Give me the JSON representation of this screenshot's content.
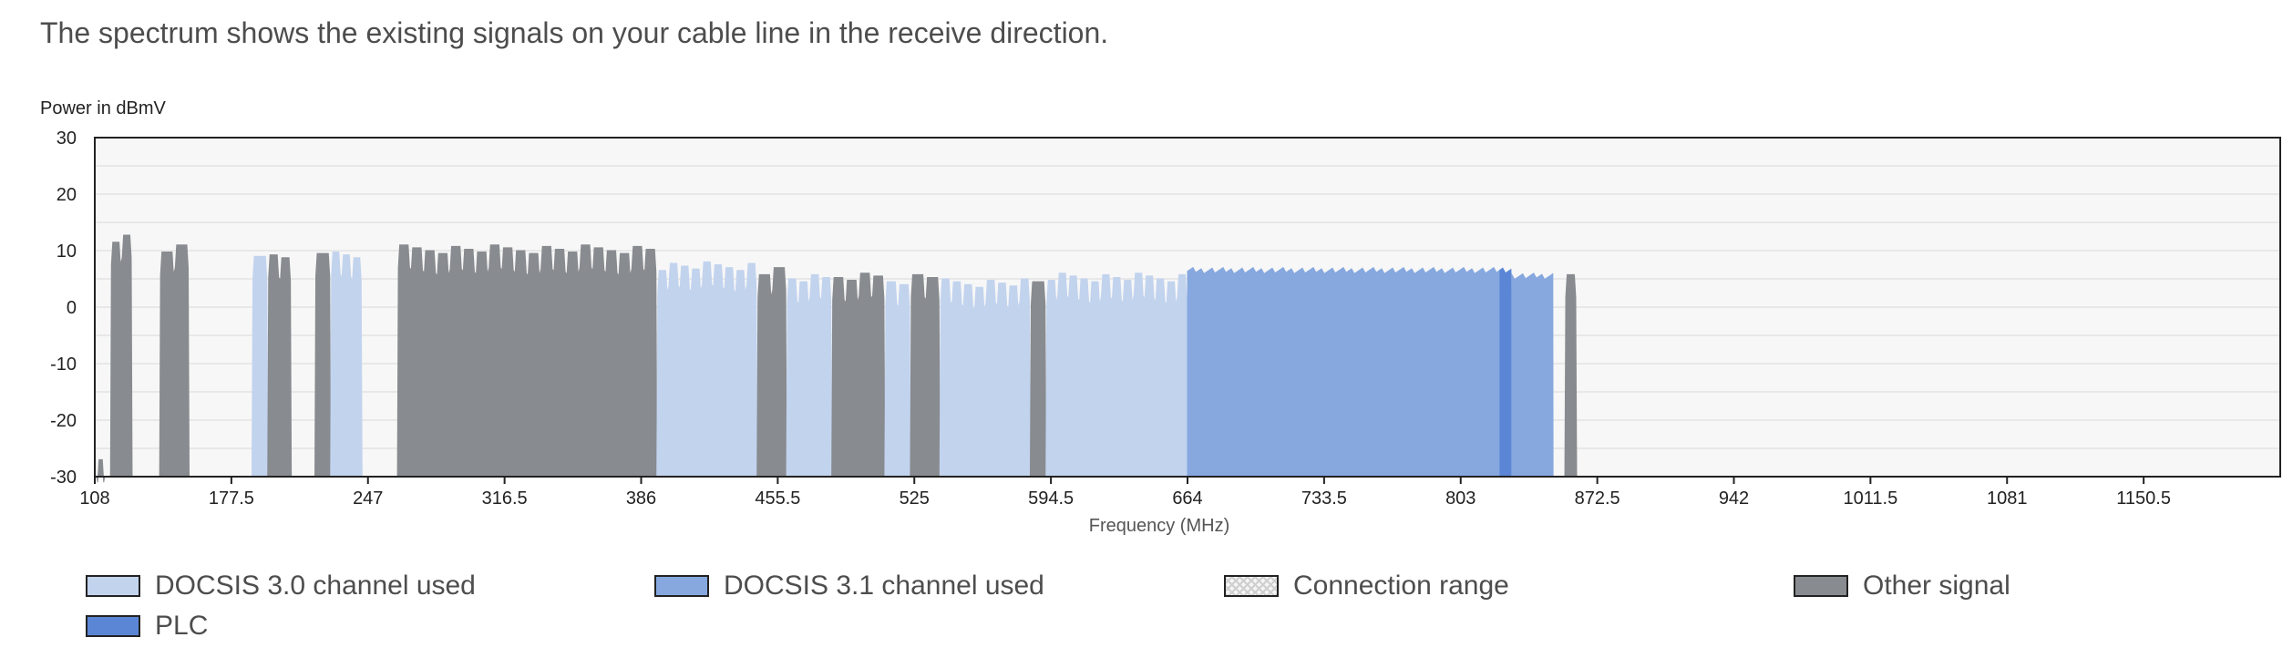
{
  "intro_text": "The spectrum shows the existing signals on your cable line in the receive direction.",
  "colors": {
    "docsis30": "#c2d3ee",
    "docsis31": "#86a8df",
    "plc": "#5b86d6",
    "other": "#888b8f",
    "range_fill": "#f5f5f5",
    "plot_bg": "#f7f7f7"
  },
  "chart_data": {
    "type": "area",
    "title": "",
    "xlabel": "Frequency (MHz)",
    "ylabel": "Power in dBmV",
    "xlim": [
      108,
      1220
    ],
    "ylim": [
      -30,
      30
    ],
    "xticks": [
      "108",
      "177.5",
      "247",
      "316.5",
      "386",
      "455.5",
      "525",
      "594.5",
      "664",
      "733.5",
      "803",
      "872.5",
      "942",
      "1011.5",
      "1081",
      "1150.5"
    ],
    "yticks": [
      "30",
      "20",
      "10",
      "0",
      "-10",
      "-20",
      "-30"
    ],
    "grid": true,
    "legend": [
      {
        "name": "DOCSIS 3.0 channel used",
        "color": "#c2d3ee"
      },
      {
        "name": "DOCSIS 3.1 channel used",
        "color": "#86a8df"
      },
      {
        "name": "Connection range",
        "color": "#f5f5f5"
      },
      {
        "name": "Other signal",
        "color": "#888b8f"
      },
      {
        "name": "PLC",
        "color": "#5b86d6"
      }
    ],
    "series": [
      {
        "kind": "other",
        "x_start": 109,
        "x_end": 113,
        "level": -27
      },
      {
        "kind": "other",
        "x_start": 116,
        "x_end": 127,
        "level": 13
      },
      {
        "kind": "other",
        "x_start": 141,
        "x_end": 156,
        "level": 11
      },
      {
        "kind": "docsis30",
        "x_start": 188,
        "x_end": 196,
        "level": 10
      },
      {
        "kind": "other",
        "x_start": 196,
        "x_end": 208,
        "level": 10
      },
      {
        "kind": "other",
        "x_start": 220,
        "x_end": 228,
        "level": 10
      },
      {
        "kind": "docsis30",
        "x_start": 228,
        "x_end": 244,
        "level": 10
      },
      {
        "kind": "other",
        "x_start": 262,
        "x_end": 394,
        "level": 11
      },
      {
        "kind": "docsis30",
        "x_start": 394,
        "x_end": 445,
        "level": 8
      },
      {
        "kind": "other",
        "x_start": 445,
        "x_end": 460,
        "level": 7
      },
      {
        "kind": "docsis30",
        "x_start": 460,
        "x_end": 483,
        "level": 6
      },
      {
        "kind": "other",
        "x_start": 483,
        "x_end": 510,
        "level": 6
      },
      {
        "kind": "docsis30",
        "x_start": 510,
        "x_end": 523,
        "level": 5
      },
      {
        "kind": "other",
        "x_start": 523,
        "x_end": 538,
        "level": 6
      },
      {
        "kind": "docsis30",
        "x_start": 538,
        "x_end": 584,
        "level": 5
      },
      {
        "kind": "other",
        "x_start": 584,
        "x_end": 592,
        "level": 6
      },
      {
        "kind": "docsis30",
        "x_start": 592,
        "x_end": 664,
        "level": 6
      },
      {
        "kind": "docsis31",
        "x_start": 664,
        "x_end": 823,
        "level": 7
      },
      {
        "kind": "plc",
        "x_start": 823,
        "x_end": 829,
        "level": 7
      },
      {
        "kind": "docsis31",
        "x_start": 829,
        "x_end": 850,
        "level": 6
      },
      {
        "kind": "other",
        "x_start": 856,
        "x_end": 862,
        "level": 6
      }
    ]
  }
}
